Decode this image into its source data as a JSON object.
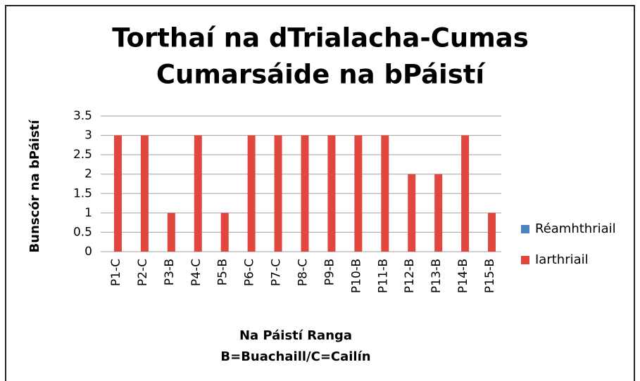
{
  "chart_data": {
    "type": "bar",
    "title": [
      "Torthaí na dTrialacha-Cumas",
      "Cumarsáide na bPáistí"
    ],
    "y_label": "Bunscór na bPáistí",
    "x_label": [
      "Na Páistí Ranga",
      "B=Buachaill/C=Cailín"
    ],
    "categories": [
      "P1-C",
      "P2-C",
      "P3-B",
      "P4-C",
      "P5-B",
      "P6-C",
      "P7-C",
      "P8-C",
      "P9-B",
      "P10-B",
      "P11-B",
      "P12-B",
      "P13-B",
      "P14-B",
      "P15-B"
    ],
    "series": [
      {
        "name": "Réamhthriail",
        "color": "#4f81bd",
        "values": [
          null,
          null,
          null,
          null,
          null,
          null,
          null,
          null,
          null,
          null,
          null,
          null,
          null,
          null,
          null
        ]
      },
      {
        "name": "Iarthriail",
        "color": "#e0473f",
        "values": [
          3,
          3,
          1,
          3,
          1,
          3,
          3,
          3,
          3,
          3,
          3,
          2,
          2,
          3,
          1
        ]
      }
    ],
    "ylim": [
      0,
      3.5
    ],
    "yticks": [
      0,
      0.5,
      1,
      1.5,
      2,
      2.5,
      3,
      3.5
    ],
    "grid": true,
    "legend": "right"
  }
}
